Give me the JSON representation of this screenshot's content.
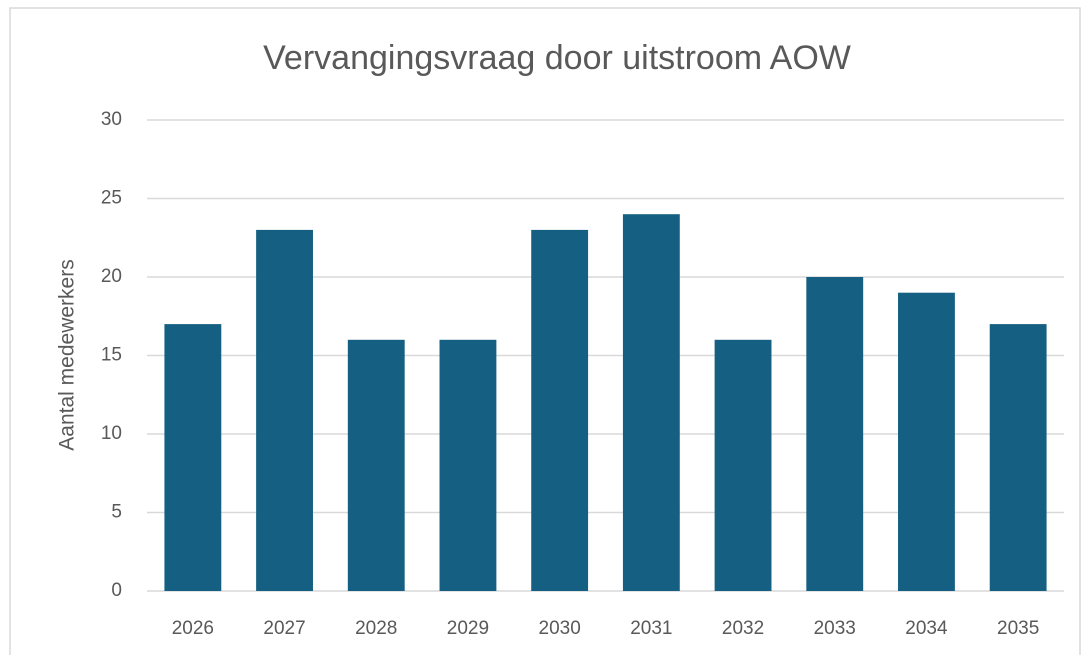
{
  "chart_data": {
    "type": "bar",
    "title": "Vervangingsvraag door uitstroom AOW",
    "y_label": "Aantal medewerkers",
    "categories": [
      "2026",
      "2027",
      "2028",
      "2029",
      "2030",
      "2031",
      "2032",
      "2033",
      "2034",
      "2035"
    ],
    "values": [
      17,
      23,
      16,
      16,
      23,
      24,
      16,
      20,
      19,
      17
    ],
    "color": "#156082",
    "ylim": [
      0,
      30
    ],
    "yticks": [
      0,
      5,
      10,
      15,
      20,
      25,
      30
    ],
    "grid": true
  }
}
